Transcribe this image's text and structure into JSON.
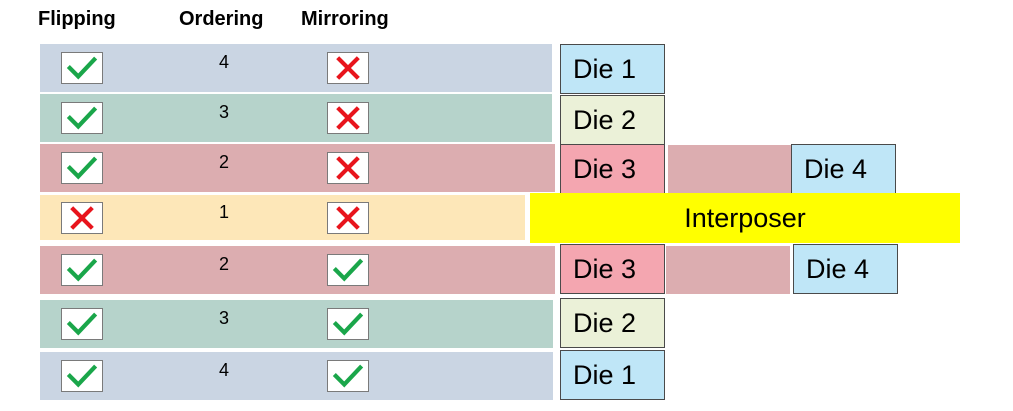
{
  "headers": {
    "flipping": "Flipping",
    "ordering": "Ordering",
    "mirroring": "Mirroring"
  },
  "rows": [
    {
      "flipping": "check",
      "ordering": "4",
      "mirroring": "cross",
      "color": "#cad5e3"
    },
    {
      "flipping": "check",
      "ordering": "3",
      "mirroring": "cross",
      "color": "#b6d3cb"
    },
    {
      "flipping": "check",
      "ordering": "2",
      "mirroring": "cross",
      "color": "#dcadb0"
    },
    {
      "flipping": "cross",
      "ordering": "1",
      "mirroring": "cross",
      "color": "#fde7b8"
    },
    {
      "flipping": "check",
      "ordering": "2",
      "mirroring": "check",
      "color": "#dcadb0"
    },
    {
      "flipping": "check",
      "ordering": "3",
      "mirroring": "check",
      "color": "#b6d3cb"
    },
    {
      "flipping": "check",
      "ordering": "4",
      "mirroring": "check",
      "color": "#cad5e3"
    }
  ],
  "dies": {
    "top_die1": "Die 1",
    "top_die2": "Die 2",
    "top_die3": "Die 3",
    "top_die4": "Die 4",
    "interposer": "Interposer",
    "bot_die3": "Die 3",
    "bot_die4": "Die 4",
    "bot_die2": "Die 2",
    "bot_die1": "Die 1"
  },
  "colors": {
    "die1": "#bfe6f7",
    "die2": "#ebf1d8",
    "die3": "#f4a6b0",
    "die4": "#bfe6f7",
    "interposer": "#ffff00",
    "die_connector": "#dcadb0",
    "check_mark": "#1aa64a",
    "cross_mark": "#e8141c"
  },
  "icons": {
    "check": "check-icon",
    "cross": "cross-icon"
  }
}
